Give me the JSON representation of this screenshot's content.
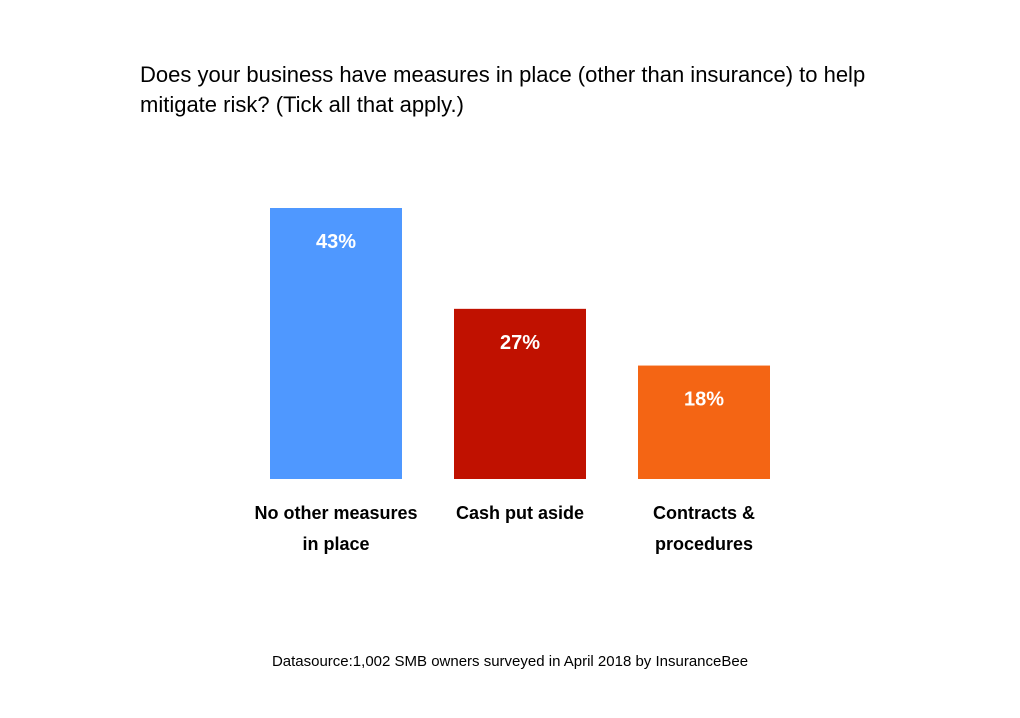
{
  "chart_data": {
    "type": "bar",
    "title": "Does your business have measures in place (other than insurance) to help mitigate risk? (Tick all that apply.)",
    "categories": [
      "No other measures in place",
      "Cash put aside",
      "Contracts & procedures"
    ],
    "category_lines": [
      [
        "No other measures",
        "in place"
      ],
      [
        "Cash put aside"
      ],
      [
        "Contracts &",
        "procedures"
      ]
    ],
    "values": [
      43,
      27,
      18
    ],
    "data_labels": [
      "43%",
      "27%",
      "18%"
    ],
    "colors": [
      "#4f98ff",
      "#c01100",
      "#f46514"
    ],
    "label_color": "#ffffff",
    "ylim": [
      0,
      43
    ],
    "grid": false,
    "legend": "none",
    "source": "Datasource:1,002 SMB owners surveyed in April 2018 by InsuranceBee"
  }
}
